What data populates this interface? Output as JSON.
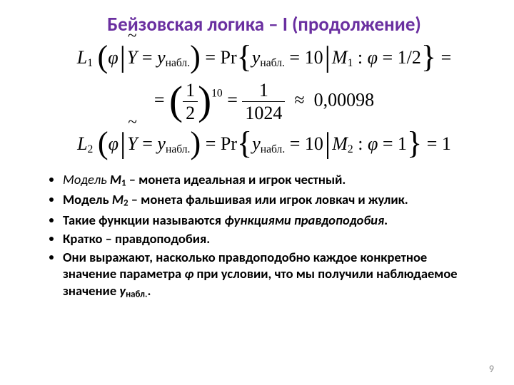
{
  "title": {
    "text": "Бейзовская логика – I (продолжение)",
    "color": "#6a2fa0",
    "fontsize_pt": 27
  },
  "equations": {
    "L1": {
      "lhs_L": "L",
      "lhs_L_sub": "1",
      "arg_phi": "φ",
      "arg_Y": "Y",
      "arg_y": "y",
      "arg_y_sub": "набл.",
      "Pr": "Pr",
      "cond_y": "y",
      "cond_y_sub": "набл.",
      "cond_eq_val": "10",
      "cond_M": "M",
      "cond_M_sub": "1",
      "cond_phi": "φ",
      "cond_phi_val_num": "1",
      "cond_phi_val_den": "2"
    },
    "mid": {
      "base_num": "1",
      "base_den": "2",
      "exponent": "10",
      "frac_num": "1",
      "frac_den": "1024",
      "approx": "0,00098"
    },
    "L2": {
      "lhs_L": "L",
      "lhs_L_sub": "2",
      "arg_phi": "φ",
      "arg_Y": "Y",
      "arg_y": "y",
      "arg_y_sub": "набл.",
      "Pr": "Pr",
      "cond_y": "y",
      "cond_y_sub": "набл.",
      "cond_eq_val": "10",
      "cond_M": "M",
      "cond_M_sub": "2",
      "cond_phi": "φ",
      "cond_phi_val": "1",
      "rhs": "1"
    }
  },
  "bullets": {
    "b1_pre": " Модель ",
    "b1_M": "М",
    "b1_Msub": "1",
    "b1_rest": " – монета идеальная и игрок честный.",
    "b2_pre": "Модель ",
    "b2_M": "М",
    "b2_Msub": "2",
    "b2_rest": " – монета фальшивая или игрок ловкач и жулик.",
    "b3_a": "Такие функции называются ",
    "b3_b": "функциями правдоподобия",
    "b3_c": ".",
    "b4_a": "Кратко – ",
    "b4_b": "правдоподобия",
    "b4_c": ".",
    "b5_a": "Они выражают, насколько правдоподобно каждое конкретное значение параметра ",
    "b5_phi": "φ",
    "b5_b": " при условии, что мы получили наблюдаемое значение ",
    "b5_y": "y",
    "b5_ysub": "набл.",
    "b5_c": "."
  },
  "pagenum": {
    "text": "9",
    "color": "#8a8a8a"
  },
  "body_fontsize_pt": 18.5,
  "background_color": "#ffffff"
}
